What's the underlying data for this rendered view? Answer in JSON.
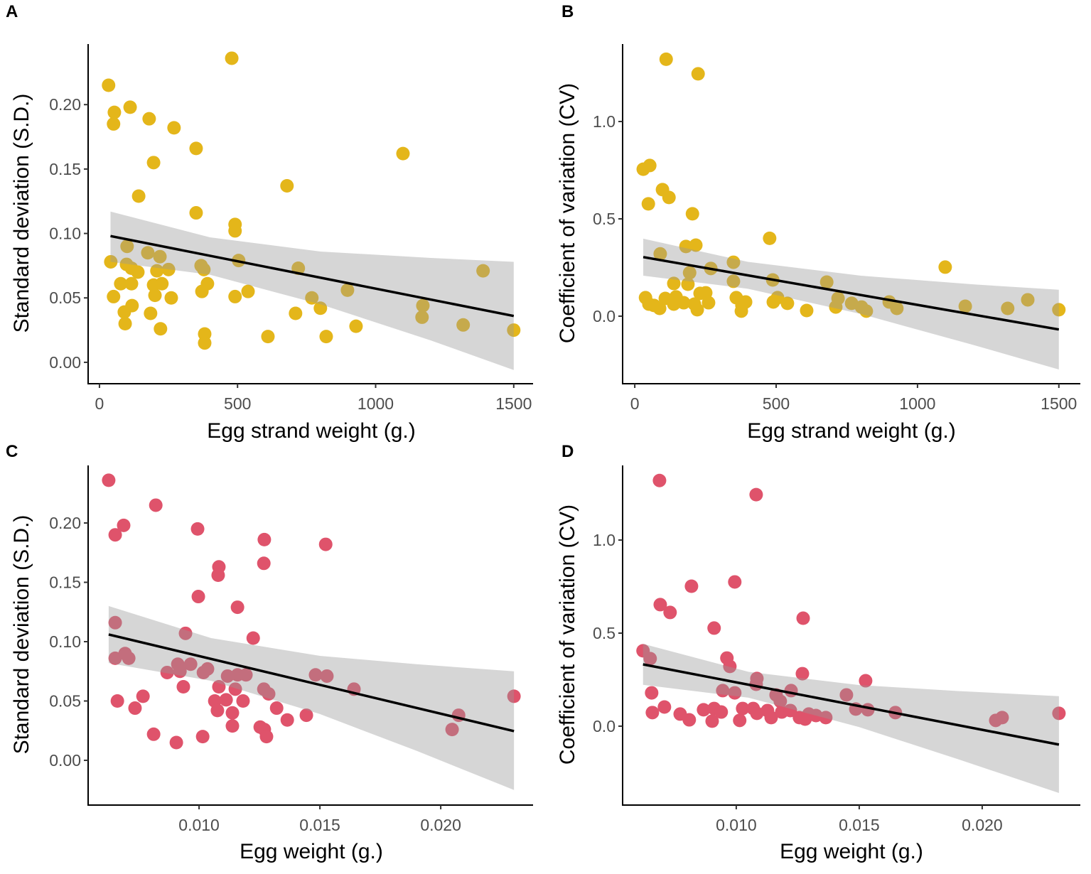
{
  "chart_data": [
    {
      "panel": "A",
      "type": "scatter",
      "xlabel": "Egg strand weight (g.)",
      "ylabel": "Standard deviation (S.D.)",
      "xlim": [
        -41,
        1570
      ],
      "ylim": [
        -0.0166,
        0.247
      ],
      "xticks": [
        0,
        500,
        1000,
        1500
      ],
      "xtick_labels": [
        "0",
        "500",
        "1000",
        "1500"
      ],
      "yticks": [
        0,
        0.05,
        0.1,
        0.15,
        0.2
      ],
      "ytick_labels": [
        "0.00",
        "0.05",
        "0.10",
        "0.15",
        "0.20"
      ],
      "grid": false,
      "color": "#E4B61A",
      "points": [
        [
          33,
          0.215
        ],
        [
          54,
          0.194
        ],
        [
          51,
          0.185
        ],
        [
          111,
          0.198
        ],
        [
          180,
          0.189
        ],
        [
          270,
          0.182
        ],
        [
          196,
          0.155
        ],
        [
          350,
          0.166
        ],
        [
          479,
          0.236
        ],
        [
          1099,
          0.162
        ],
        [
          679,
          0.137
        ],
        [
          142,
          0.129
        ],
        [
          350,
          0.116
        ],
        [
          491,
          0.107
        ],
        [
          491,
          0.102
        ],
        [
          100,
          0.09
        ],
        [
          41,
          0.078
        ],
        [
          175,
          0.085
        ],
        [
          219,
          0.082
        ],
        [
          98,
          0.076
        ],
        [
          116,
          0.073
        ],
        [
          139,
          0.07
        ],
        [
          208,
          0.071
        ],
        [
          250,
          0.072
        ],
        [
          368,
          0.075
        ],
        [
          378,
          0.072
        ],
        [
          504,
          0.079
        ],
        [
          720,
          0.073
        ],
        [
          1389,
          0.071
        ],
        [
          77,
          0.061
        ],
        [
          116,
          0.061
        ],
        [
          196,
          0.06
        ],
        [
          226,
          0.061
        ],
        [
          391,
          0.061
        ],
        [
          51,
          0.051
        ],
        [
          201,
          0.052
        ],
        [
          260,
          0.05
        ],
        [
          371,
          0.055
        ],
        [
          538,
          0.055
        ],
        [
          491,
          0.051
        ],
        [
          769,
          0.05
        ],
        [
          898,
          0.056
        ],
        [
          1171,
          0.044
        ],
        [
          90,
          0.039
        ],
        [
          118,
          0.044
        ],
        [
          185,
          0.038
        ],
        [
          710,
          0.038
        ],
        [
          800,
          0.042
        ],
        [
          93,
          0.03
        ],
        [
          221,
          0.026
        ],
        [
          381,
          0.022
        ],
        [
          381,
          0.015
        ],
        [
          610,
          0.02
        ],
        [
          821,
          0.02
        ],
        [
          929,
          0.028
        ],
        [
          1168,
          0.035
        ],
        [
          1317,
          0.029
        ],
        [
          1500,
          0.025
        ]
      ],
      "fit": {
        "x_range": [
          40,
          1500
        ],
        "intercept": 0.0997,
        "slope": -4.25e-05
      },
      "ribbon": {
        "x": [
          40,
          400,
          800,
          1200,
          1500
        ],
        "lower": [
          0.078,
          0.068,
          0.045,
          0.017,
          -0.006
        ],
        "upper": [
          0.117,
          0.097,
          0.086,
          0.081,
          0.078
        ]
      }
    },
    {
      "panel": "B",
      "type": "scatter",
      "xlabel": "Egg strand weight (g.)",
      "ylabel": "Coefficient of variation (CV)",
      "xlim": [
        -43,
        1576
      ],
      "ylim": [
        -0.347,
        1.398
      ],
      "xticks": [
        0,
        500,
        1000,
        1500
      ],
      "xtick_labels": [
        "0",
        "500",
        "1000",
        "1500"
      ],
      "yticks": [
        0,
        0.5,
        1.0
      ],
      "ytick_labels": [
        "0.0",
        "0.5",
        "1.0"
      ],
      "grid": false,
      "color": "#E4B61A",
      "points": [
        [
          111,
          1.32
        ],
        [
          224,
          1.245
        ],
        [
          30,
          0.755
        ],
        [
          53,
          0.774
        ],
        [
          98,
          0.65
        ],
        [
          121,
          0.61
        ],
        [
          48,
          0.577
        ],
        [
          204,
          0.526
        ],
        [
          477,
          0.4
        ],
        [
          181,
          0.358
        ],
        [
          216,
          0.365
        ],
        [
          90,
          0.32
        ],
        [
          349,
          0.277
        ],
        [
          269,
          0.245
        ],
        [
          194,
          0.223
        ],
        [
          1098,
          0.252
        ],
        [
          488,
          0.186
        ],
        [
          349,
          0.179
        ],
        [
          679,
          0.175
        ],
        [
          138,
          0.168
        ],
        [
          188,
          0.164
        ],
        [
          38,
          0.095
        ],
        [
          108,
          0.091
        ],
        [
          146,
          0.099
        ],
        [
          231,
          0.117
        ],
        [
          251,
          0.12
        ],
        [
          359,
          0.095
        ],
        [
          392,
          0.073
        ],
        [
          505,
          0.095
        ],
        [
          490,
          0.073
        ],
        [
          540,
          0.066
        ],
        [
          719,
          0.091
        ],
        [
          767,
          0.066
        ],
        [
          900,
          0.073
        ],
        [
          802,
          0.047
        ],
        [
          711,
          0.047
        ],
        [
          819,
          0.026
        ],
        [
          927,
          0.04
        ],
        [
          608,
          0.029
        ],
        [
          1169,
          0.051
        ],
        [
          1319,
          0.04
        ],
        [
          1390,
          0.084
        ],
        [
          1500,
          0.033
        ],
        [
          50,
          0.062
        ],
        [
          88,
          0.04
        ],
        [
          138,
          0.062
        ],
        [
          173,
          0.069
        ],
        [
          221,
          0.033
        ],
        [
          261,
          0.069
        ],
        [
          377,
          0.026
        ],
        [
          379,
          0.055
        ],
        [
          68,
          0.055
        ],
        [
          211,
          0.062
        ]
      ],
      "fit": {
        "x_range": [
          30,
          1500
        ],
        "intercept": 0.311,
        "slope": -0.000253
      },
      "ribbon": {
        "x": [
          30,
          400,
          800,
          1200,
          1500
        ],
        "lower": [
          0.208,
          0.141,
          0.011,
          -0.149,
          -0.274
        ],
        "upper": [
          0.398,
          0.279,
          0.208,
          0.163,
          0.136
        ]
      }
    },
    {
      "panel": "C",
      "type": "scatter",
      "xlabel": "Egg weight (g.)",
      "ylabel": "Standard deviation (S.D.)",
      "xlim": [
        0.00541,
        0.02382
      ],
      "ylim": [
        -0.0377,
        0.2485
      ],
      "xticks": [
        0.01,
        0.015,
        0.02
      ],
      "xtick_labels": [
        "0.010",
        "0.015",
        "0.020"
      ],
      "yticks": [
        0,
        0.05,
        0.1,
        0.15,
        0.2
      ],
      "ytick_labels": [
        "0.00",
        "0.05",
        "0.10",
        "0.15",
        "0.20"
      ],
      "grid": false,
      "color": "#DF536B",
      "points": [
        [
          0.00626,
          0.236
        ],
        [
          0.00821,
          0.215
        ],
        [
          0.00653,
          0.19
        ],
        [
          0.00688,
          0.198
        ],
        [
          0.00994,
          0.195
        ],
        [
          0.0127,
          0.186
        ],
        [
          0.01524,
          0.182
        ],
        [
          0.01268,
          0.166
        ],
        [
          0.01082,
          0.163
        ],
        [
          0.01079,
          0.156
        ],
        [
          0.00997,
          0.138
        ],
        [
          0.01159,
          0.129
        ],
        [
          0.01224,
          0.103
        ],
        [
          0.00944,
          0.107
        ],
        [
          0.00653,
          0.116
        ],
        [
          0.00653,
          0.086
        ],
        [
          0.00694,
          0.09
        ],
        [
          0.00709,
          0.086
        ],
        [
          0.00912,
          0.081
        ],
        [
          0.00965,
          0.081
        ],
        [
          0.01035,
          0.077
        ],
        [
          0.01018,
          0.074
        ],
        [
          0.00868,
          0.074
        ],
        [
          0.00921,
          0.075
        ],
        [
          0.01118,
          0.071
        ],
        [
          0.01159,
          0.072
        ],
        [
          0.01194,
          0.072
        ],
        [
          0.01482,
          0.072
        ],
        [
          0.01529,
          0.071
        ],
        [
          0.00935,
          0.062
        ],
        [
          0.01082,
          0.062
        ],
        [
          0.0115,
          0.06
        ],
        [
          0.01268,
          0.06
        ],
        [
          0.01288,
          0.056
        ],
        [
          0.01641,
          0.06
        ],
        [
          0.00662,
          0.05
        ],
        [
          0.00768,
          0.054
        ],
        [
          0.01065,
          0.05
        ],
        [
          0.01112,
          0.051
        ],
        [
          0.01182,
          0.05
        ],
        [
          0.00735,
          0.044
        ],
        [
          0.01076,
          0.042
        ],
        [
          0.01138,
          0.04
        ],
        [
          0.01321,
          0.044
        ],
        [
          0.01365,
          0.034
        ],
        [
          0.01444,
          0.038
        ],
        [
          0.01138,
          0.029
        ],
        [
          0.01253,
          0.028
        ],
        [
          0.0127,
          0.026
        ],
        [
          0.01279,
          0.02
        ],
        [
          0.00812,
          0.022
        ],
        [
          0.00906,
          0.015
        ],
        [
          0.01015,
          0.02
        ],
        [
          0.02303,
          0.054
        ],
        [
          0.02074,
          0.038
        ],
        [
          0.02047,
          0.026
        ]
      ],
      "fit": {
        "x_range": [
          0.00626,
          0.02303
        ],
        "intercept": 0.1364,
        "slope": -4.854
      },
      "ribbon": {
        "x": [
          0.00626,
          0.0105,
          0.015,
          0.019,
          0.02303
        ],
        "lower": [
          0.082,
          0.067,
          0.039,
          0.008,
          -0.025
        ],
        "upper": [
          0.13,
          0.103,
          0.088,
          0.081,
          0.075
        ]
      }
    },
    {
      "panel": "D",
      "type": "scatter",
      "xlabel": "Egg weight (g.)",
      "ylabel": "Coefficient of variation (CV)",
      "xlim": [
        0.00538,
        0.02399
      ],
      "ylim": [
        -0.424,
        1.401
      ],
      "xticks": [
        0.01,
        0.015,
        0.02
      ],
      "xtick_labels": [
        "0.010",
        "0.015",
        "0.020"
      ],
      "yticks": [
        0,
        0.5,
        1.0
      ],
      "ytick_labels": [
        "0.0",
        "0.5",
        "1.0"
      ],
      "grid": false,
      "color": "#DF536B",
      "points": [
        [
          0.00688,
          1.32
        ],
        [
          0.01081,
          1.244
        ],
        [
          0.00818,
          0.752
        ],
        [
          0.00994,
          0.775
        ],
        [
          0.00691,
          0.653
        ],
        [
          0.00731,
          0.611
        ],
        [
          0.01272,
          0.58
        ],
        [
          0.0091,
          0.527
        ],
        [
          0.00621,
          0.405
        ],
        [
          0.0065,
          0.363
        ],
        [
          0.00962,
          0.366
        ],
        [
          0.00974,
          0.321
        ],
        [
          0.01269,
          0.282
        ],
        [
          0.01084,
          0.256
        ],
        [
          0.01526,
          0.244
        ],
        [
          0.01081,
          0.225
        ],
        [
          0.00656,
          0.179
        ],
        [
          0.00945,
          0.191
        ],
        [
          0.00994,
          0.179
        ],
        [
          0.01223,
          0.191
        ],
        [
          0.01162,
          0.168
        ],
        [
          0.01448,
          0.168
        ],
        [
          0.01179,
          0.134
        ],
        [
          0.00708,
          0.103
        ],
        [
          0.00659,
          0.073
        ],
        [
          0.00772,
          0.065
        ],
        [
          0.00809,
          0.034
        ],
        [
          0.00867,
          0.088
        ],
        [
          0.0091,
          0.095
        ],
        [
          0.00939,
          0.076
        ],
        [
          0.00902,
          0.027
        ],
        [
          0.01026,
          0.095
        ],
        [
          0.01014,
          0.031
        ],
        [
          0.01069,
          0.095
        ],
        [
          0.01084,
          0.069
        ],
        [
          0.01127,
          0.084
        ],
        [
          0.01142,
          0.046
        ],
        [
          0.01185,
          0.076
        ],
        [
          0.0122,
          0.084
        ],
        [
          0.01257,
          0.046
        ],
        [
          0.0128,
          0.038
        ],
        [
          0.01295,
          0.065
        ],
        [
          0.01324,
          0.057
        ],
        [
          0.01364,
          0.046
        ],
        [
          0.01486,
          0.092
        ],
        [
          0.01535,
          0.088
        ],
        [
          0.01647,
          0.073
        ],
        [
          0.02055,
          0.031
        ],
        [
          0.02081,
          0.046
        ],
        [
          0.02312,
          0.069
        ]
      ],
      "fit": {
        "x_range": [
          0.00621,
          0.02312
        ],
        "intercept": 0.4903,
        "slope": -25.49
      },
      "ribbon": {
        "x": [
          0.00621,
          0.0105,
          0.015,
          0.019,
          0.02312
        ],
        "lower": [
          0.222,
          0.153,
          -0.005,
          -0.177,
          -0.359
        ],
        "upper": [
          0.442,
          0.292,
          0.221,
          0.189,
          0.161
        ]
      }
    }
  ]
}
